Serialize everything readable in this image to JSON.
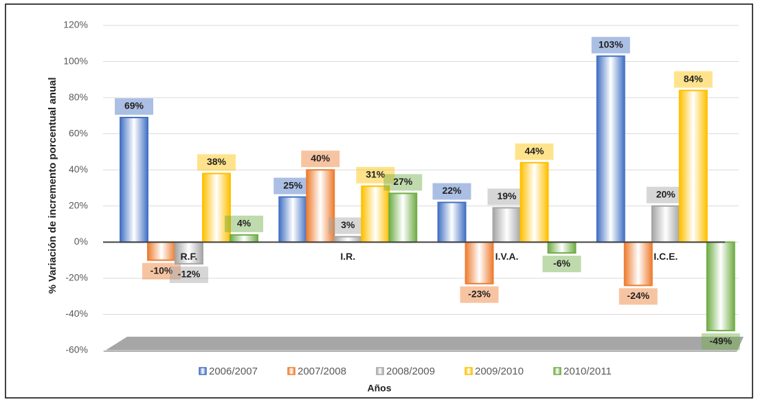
{
  "chart_data": {
    "type": "bar",
    "y_label": "% Variación de incremento porcentual anual",
    "x_label": "Años",
    "categories": [
      "R.F.",
      "I.R.",
      "I.V.A.",
      "I.C.E."
    ],
    "series": [
      {
        "name": "2006/2007",
        "color": "#4472c4",
        "values": [
          69,
          25,
          22,
          103
        ],
        "value_labels": [
          "69%",
          "25%",
          "22%",
          "103%"
        ]
      },
      {
        "name": "2007/2008",
        "color": "#ed7d31",
        "values": [
          -10,
          40,
          -23,
          -24
        ],
        "value_labels": [
          "-10%",
          "40%",
          "-23%",
          "-24%"
        ]
      },
      {
        "name": "2008/2009",
        "color": "#a5a5a5",
        "values": [
          -12,
          3,
          19,
          20
        ],
        "value_labels": [
          "-12%",
          "3%",
          "19%",
          "20%"
        ]
      },
      {
        "name": "2009/2010",
        "color": "#ffc000",
        "values": [
          38,
          31,
          44,
          84
        ],
        "value_labels": [
          "38%",
          "31%",
          "44%",
          "84%"
        ]
      },
      {
        "name": "2010/2011",
        "color": "#70ad47",
        "values": [
          4,
          27,
          -6,
          -49
        ],
        "value_labels": [
          "4%",
          "27%",
          "-6%",
          "-49%"
        ]
      }
    ],
    "ylim": [
      -60,
      120
    ],
    "yticks": [
      {
        "value": -60,
        "label": "-60%"
      },
      {
        "value": -40,
        "label": "-40%"
      },
      {
        "value": -20,
        "label": "-20%"
      },
      {
        "value": 0,
        "label": "0%"
      },
      {
        "value": 20,
        "label": "20%"
      },
      {
        "value": 40,
        "label": "40%"
      },
      {
        "value": 60,
        "label": "60%"
      },
      {
        "value": 80,
        "label": "80%"
      },
      {
        "value": 100,
        "label": "100%"
      },
      {
        "value": 120,
        "label": "120%"
      }
    ],
    "grid": true,
    "legend": "bottom"
  }
}
